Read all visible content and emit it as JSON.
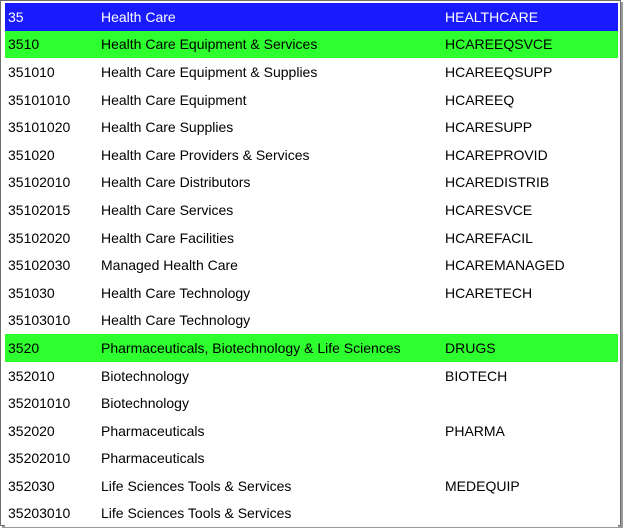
{
  "rows": [
    {
      "code": "35",
      "name": "Health Care",
      "mnemonic": "HEALTHCARE",
      "level": "sector"
    },
    {
      "code": "3510",
      "name": "Health Care Equipment & Services",
      "mnemonic": "HCAREEQSVCE",
      "level": "group"
    },
    {
      "code": "351010",
      "name": "Health Care Equipment & Supplies",
      "mnemonic": "HCAREEQSUPP",
      "level": "item"
    },
    {
      "code": "35101010",
      "name": "Health Care Equipment",
      "mnemonic": "HCAREEQ",
      "level": "item"
    },
    {
      "code": "35101020",
      "name": "Health Care Supplies",
      "mnemonic": "HCARESUPP",
      "level": "item"
    },
    {
      "code": "351020",
      "name": "Health Care Providers & Services",
      "mnemonic": "HCAREPROVID",
      "level": "item"
    },
    {
      "code": "35102010",
      "name": "Health Care Distributors",
      "mnemonic": "HCAREDISTRIB",
      "level": "item"
    },
    {
      "code": "35102015",
      "name": "Health Care Services",
      "mnemonic": "HCARESVCE",
      "level": "item"
    },
    {
      "code": "35102020",
      "name": "Health Care Facilities",
      "mnemonic": "HCAREFACIL",
      "level": "item"
    },
    {
      "code": "35102030",
      "name": "Managed Health Care",
      "mnemonic": "HCAREMANAGED",
      "level": "item"
    },
    {
      "code": "351030",
      "name": "Health Care Technology",
      "mnemonic": "HCARETECH",
      "level": "item"
    },
    {
      "code": "35103010",
      "name": "Health Care Technology",
      "mnemonic": "",
      "level": "item"
    },
    {
      "code": "3520",
      "name": "Pharmaceuticals, Biotechnology & Life Sciences",
      "mnemonic": "DRUGS",
      "level": "group"
    },
    {
      "code": "352010",
      "name": "Biotechnology",
      "mnemonic": "BIOTECH",
      "level": "item"
    },
    {
      "code": "35201010",
      "name": "Biotechnology",
      "mnemonic": "",
      "level": "item"
    },
    {
      "code": "352020",
      "name": "Pharmaceuticals",
      "mnemonic": "PHARMA",
      "level": "item"
    },
    {
      "code": "35202010",
      "name": "Pharmaceuticals",
      "mnemonic": "",
      "level": "item"
    },
    {
      "code": "352030",
      "name": "Life Sciences Tools & Services",
      "mnemonic": "MEDEQUIP",
      "level": "item"
    },
    {
      "code": "35203010",
      "name": "Life Sciences Tools & Services",
      "mnemonic": "",
      "level": "item"
    }
  ],
  "colors": {
    "sector_bg": "#1a1aff",
    "sector_text": "#ffffff",
    "group_bg": "#2eff2e",
    "item_bg": "#ffffff",
    "text": "#000000"
  }
}
